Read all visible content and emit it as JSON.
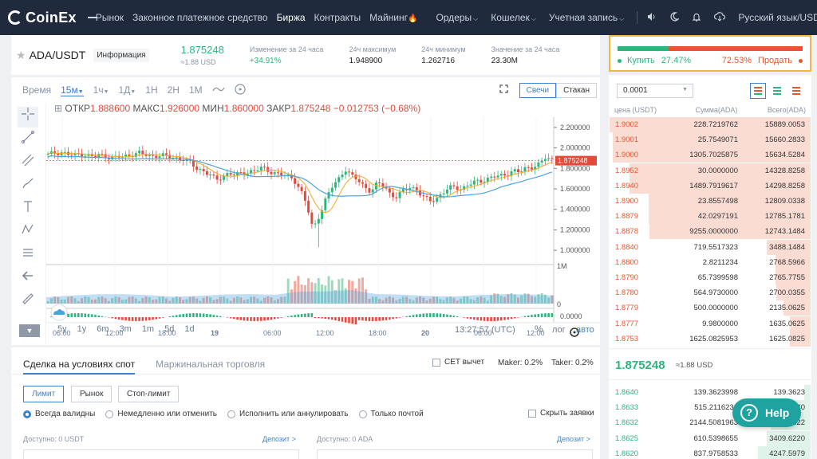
{
  "nav": {
    "logo": "CoinEx",
    "items": [
      {
        "label": "Рынок",
        "active": false
      },
      {
        "label": "Законное платежное средство",
        "active": false
      },
      {
        "label": "Биржа",
        "active": true
      },
      {
        "label": "Контракты",
        "active": false
      },
      {
        "label": "Майнинг",
        "active": false
      }
    ],
    "fire_icon": "🔥",
    "dropdowns": [
      "Ордеры",
      "Кошелек",
      "Учетная запись"
    ],
    "icons": [
      "volume-icon",
      "moon-icon",
      "bell-icon",
      "download-icon"
    ],
    "language": "Русский язык/USD"
  },
  "ticker": {
    "pair": "ADA/USDT",
    "info_label": "Информация",
    "price": "1.875248",
    "price_usd": "≈1.88 USD",
    "change_label": "Изменение за 24 часа",
    "change_value": "+34.91%",
    "high_label": "24ч максимум",
    "high_value": "1.948900",
    "low_label": "24ч минимум",
    "low_value": "1.262716",
    "vol_label": "Значение за 24 часа",
    "vol_value": "23.30M"
  },
  "ratio": {
    "buy_label": "Купить",
    "buy_pct": "27.47%",
    "buy_fraction": 0.2747,
    "sell_pct": "72.53%",
    "sell_label": "Продать"
  },
  "chart_toolbar": {
    "time": "Время",
    "intervals": [
      "15м",
      "1ч",
      "1Д",
      "1H",
      "2H",
      "1M"
    ],
    "selected": "15м",
    "view_candles": "Свечи",
    "view_depth": "Стакан"
  },
  "ohlc": {
    "open_label": "ОТКР",
    "open": "1.888600",
    "high_label": "МАКС",
    "high": "1.926000",
    "low_label": "МИН",
    "low": "1.860000",
    "close_label": "ЗАКР",
    "close": "1.875248",
    "change": "−0.012753 (−0.68%)"
  },
  "chart_data": {
    "type": "candlestick",
    "price_axis_labels": [
      "2.200000",
      "2.000000",
      "1.800000",
      "1.600000",
      "1.400000",
      "1.200000",
      "1.000000"
    ],
    "current_price_label": "1.875248",
    "volume_axis_labels": [
      "1M",
      "0"
    ],
    "macd_axis_label": "0.0000",
    "time_labels": [
      "06:00",
      "12:00",
      "18:00",
      "19",
      "06:00",
      "12:00",
      "18:00",
      "20",
      "06:00",
      "12:00"
    ],
    "price_range": [
      0.9,
      2.3
    ],
    "close_path": [
      1.93,
      1.95,
      1.96,
      1.94,
      1.92,
      1.95,
      1.93,
      1.91,
      1.93,
      1.92,
      1.9,
      1.91,
      1.92,
      1.94,
      1.95,
      1.93,
      1.92,
      1.93,
      1.92,
      1.91,
      1.9,
      1.89,
      1.85,
      1.8,
      1.78,
      1.74,
      1.68,
      1.72,
      1.76,
      1.73,
      1.75,
      1.77,
      1.78,
      1.8,
      1.78,
      1.76,
      1.74,
      1.72,
      1.7,
      1.6,
      1.45,
      1.2,
      1.35,
      1.5,
      1.62,
      1.7,
      1.8,
      1.72,
      1.68,
      1.62,
      1.58,
      1.65,
      1.63,
      1.55,
      1.52,
      1.58,
      1.62,
      1.6,
      1.52,
      1.48,
      1.5,
      1.56,
      1.6,
      1.62,
      1.6,
      1.64,
      1.66,
      1.68,
      1.7,
      1.72,
      1.72,
      1.75,
      1.78,
      1.76,
      1.8,
      1.82,
      1.84,
      1.9,
      1.88
    ]
  },
  "range_bar": {
    "ranges": [
      "5y",
      "1y",
      "6m",
      "3m",
      "1m",
      "5d",
      "1d"
    ],
    "clock": "13:27:57 (UTC)",
    "pct": "%",
    "log": "лог",
    "auto": "авто"
  },
  "trade": {
    "tab_spot": "Сделка на условиях спот",
    "tab_margin": "Маржинальная торговля",
    "cet_label": "CET вычет",
    "maker": "Maker: 0.2%",
    "taker": "Taker: 0.2%",
    "order_types": [
      "Лимит",
      "Рынок",
      "Стоп-лимит"
    ],
    "tif": [
      "Всегда валидны",
      "Немедленно или отменить",
      "Исполнить или аннулировать",
      "Только почтой"
    ],
    "hide_orders": "Скрыть заявки",
    "avail_usdt": "Доступно: 0 USDT",
    "avail_ada": "Доступно: 0 ADA",
    "deposit": "Депозит >"
  },
  "book": {
    "precision": "0.0001",
    "head_price": "цена (USDT)",
    "head_amount": "Сумма(ADA)",
    "head_total": "Всего(ADA)",
    "asks": [
      {
        "price": "1.9002",
        "amount": "228.7219762",
        "total": "15889.0053",
        "depth": 1.0
      },
      {
        "price": "1.9001",
        "amount": "25.7549071",
        "total": "15660.2833",
        "depth": 0.985
      },
      {
        "price": "1.9000",
        "amount": "1305.7025875",
        "total": "15634.5284",
        "depth": 0.984
      },
      {
        "price": "1.8952",
        "amount": "30.0000000",
        "total": "14328.8258",
        "depth": 0.9
      },
      {
        "price": "1.8940",
        "amount": "1489.7919617",
        "total": "14298.8258",
        "depth": 0.9
      },
      {
        "price": "1.8900",
        "amount": "23.8557498",
        "total": "12809.0338",
        "depth": 0.805
      },
      {
        "price": "1.8879",
        "amount": "42.0297191",
        "total": "12785.1781",
        "depth": 0.805
      },
      {
        "price": "1.8878",
        "amount": "9255.0000000",
        "total": "12743.1484",
        "depth": 0.8
      },
      {
        "price": "1.8840",
        "amount": "719.5517323",
        "total": "3488.1484",
        "depth": 0.22
      },
      {
        "price": "1.8800",
        "amount": "2.8211234",
        "total": "2768.5966",
        "depth": 0.174
      },
      {
        "price": "1.8790",
        "amount": "65.7399598",
        "total": "2765.7755",
        "depth": 0.174
      },
      {
        "price": "1.8780",
        "amount": "564.9730000",
        "total": "2700.0355",
        "depth": 0.17
      },
      {
        "price": "1.8779",
        "amount": "500.0000000",
        "total": "2135.0625",
        "depth": 0.134
      },
      {
        "price": "1.8777",
        "amount": "9.9800000",
        "total": "1635.0625",
        "depth": 0.103
      },
      {
        "price": "1.8753",
        "amount": "1625.0825953",
        "total": "1625.0825",
        "depth": 0.102
      }
    ],
    "mid_price": "1.875248",
    "mid_usd": "≈1.88 USD",
    "bids": [
      {
        "price": "1.8640",
        "amount": "139.3623998",
        "total": "139.3623",
        "depth": 0.03
      },
      {
        "price": "1.8633",
        "amount": "515.2116231",
        "total": "654.5740",
        "depth": 0.12
      },
      {
        "price": "1.8632",
        "amount": "2144.5081963",
        "total": "2799.0822",
        "depth": 0.2
      },
      {
        "price": "1.8625",
        "amount": "610.5398655",
        "total": "3409.6220",
        "depth": 0.22
      },
      {
        "price": "1.8620",
        "amount": "837.9758533",
        "total": "4247.5979",
        "depth": 0.26
      }
    ]
  },
  "help": {
    "label": "Help"
  },
  "colors": {
    "up": "#2db57d",
    "down": "#e8552e",
    "accent": "#3f7fcf",
    "nav_bg": "#1f2a3d"
  }
}
